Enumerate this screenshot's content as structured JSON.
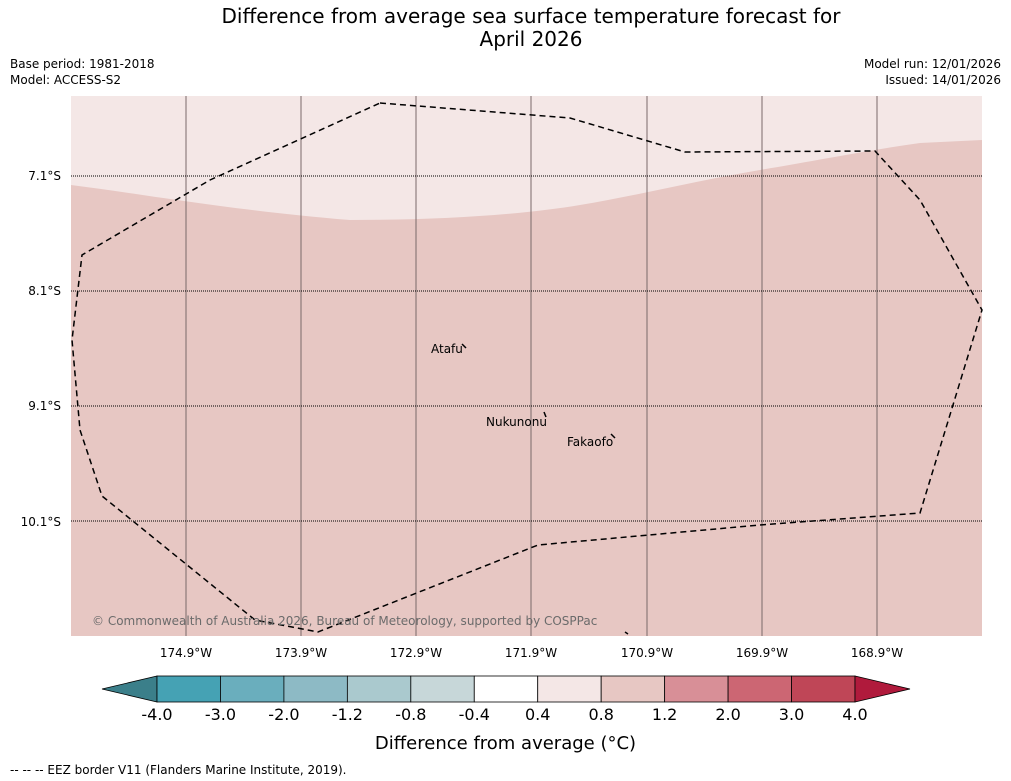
{
  "title_line1": "Difference from average sea surface temperature forecast for",
  "title_line2": "April 2026",
  "base_period": "Base period: 1981-2018",
  "model": "Model: ACCESS-S2",
  "model_run": "Model run: 12/01/2026",
  "issued": "Issued: 14/01/2026",
  "lat_labels": [
    "7.1°S",
    "8.1°S",
    "9.1°S",
    "10.1°S"
  ],
  "lon_labels": [
    "174.9°W",
    "173.9°W",
    "172.9°W",
    "171.9°W",
    "170.9°W",
    "169.9°W",
    "168.9°W"
  ],
  "places": {
    "atafu": "Atafu",
    "nukunonu": "Nukunonu",
    "fakaofo": "Fakaofo"
  },
  "copyright": "© Commonwealth of Australia 2026, Bureau of Meteorology, supported by COSPPac",
  "colorbar": {
    "ticks": [
      "-4.0",
      "-3.0",
      "-2.0",
      "-1.2",
      "-0.8",
      "-0.4",
      "0.4",
      "0.8",
      "1.2",
      "2.0",
      "3.0",
      "4.0"
    ],
    "under_color": "#3b7f8a",
    "over_color": "#b01a3c",
    "colors": [
      "#45a2b4",
      "#6aaebd",
      "#8dbac5",
      "#aac9ce",
      "#c7d7d9",
      "#ffffff",
      "#f4e7e6",
      "#e7c7c3",
      "#d88f97",
      "#cc6673",
      "#bf4657"
    ],
    "label": "Difference from average (°C)"
  },
  "map_colors": {
    "band_0_4_to_0_8": "#f4e7e6",
    "band_0_8_to_1_2": "#e7c7c3"
  },
  "footnote": "--  --  -- EEZ border V11 (Flanders Marine Institute, 2019)."
}
